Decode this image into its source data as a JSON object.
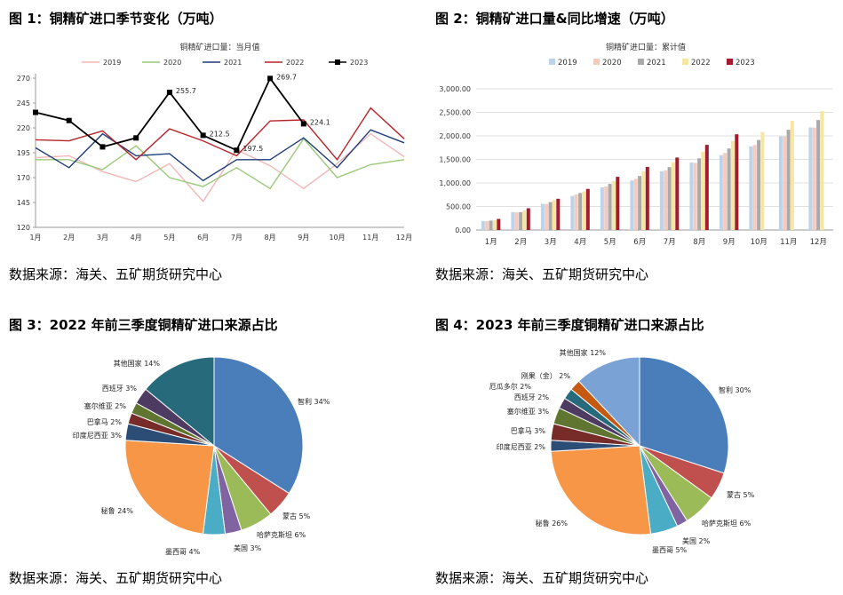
{
  "figures": [
    {
      "title": "图 1：铜精矿进口季节变化（万吨）",
      "source": "数据来源：海关、五矿期货研究中心"
    },
    {
      "title": "图 2：铜精矿进口量&同比增速（万吨）",
      "source": "数据来源：海关、五矿期货研究中心"
    },
    {
      "title": "图 3：2022 年前三季度铜精矿进口来源占比",
      "source": "数据来源：海关、五矿期货研究中心"
    },
    {
      "title": "图 4：2023 年前三季度铜精矿进口来源占比",
      "source": "数据来源：海关、五矿期货研究中心"
    }
  ],
  "chart_data": [
    {
      "type": "line",
      "title": "铜精矿进口量：当月值",
      "categories": [
        "1月",
        "2月",
        "3月",
        "4月",
        "5月",
        "6月",
        "7月",
        "8月",
        "9月",
        "10月",
        "11月",
        "12月"
      ],
      "ylim": [
        120,
        270
      ],
      "yticks": [
        120,
        145,
        170,
        195,
        220,
        245,
        270
      ],
      "grid": false,
      "legend": "top",
      "series": [
        {
          "name": "2019",
          "color": "#f4b6b6",
          "values": [
            190,
            192,
            176,
            166,
            184,
            146,
            198,
            182,
            159,
            184,
            214,
            191
          ]
        },
        {
          "name": "2020",
          "color": "#9bc97a",
          "values": [
            188,
            188,
            178,
            202,
            170,
            161,
            180,
            159,
            209,
            170,
            183,
            188
          ]
        },
        {
          "name": "2021",
          "color": "#1f3d7a",
          "values": [
            200,
            180,
            214,
            192,
            194,
            167,
            188,
            188,
            210,
            180,
            218,
            205
          ]
        },
        {
          "name": "2022",
          "color": "#b8242a",
          "values": [
            208,
            207,
            217,
            188,
            219,
            207,
            192,
            227,
            228,
            188,
            240,
            209
          ]
        },
        {
          "name": "2023",
          "color": "#000000",
          "marker": "square",
          "values": [
            235.6,
            227.4,
            200.9,
            209.9,
            255.7,
            212.5,
            197.5,
            269.7,
            224.1,
            null,
            null,
            null
          ],
          "labels": [
            null,
            null,
            null,
            null,
            "255.7",
            "212.5",
            "197.5",
            "269.7",
            "224.1",
            null,
            null,
            null
          ]
        }
      ]
    },
    {
      "type": "bar",
      "title": "铜精矿进口量：累计值",
      "categories": [
        "1月",
        "2月",
        "3月",
        "4月",
        "5月",
        "6月",
        "7月",
        "8月",
        "9月",
        "10月",
        "11月",
        "12月"
      ],
      "ylim": [
        0,
        3000
      ],
      "yticks": [
        "0.00",
        "500.00",
        "1,000.00",
        "1,500.00",
        "2,000.00",
        "2,500.00",
        "3,000.00"
      ],
      "grid": true,
      "legend": "top",
      "series": [
        {
          "name": "2019",
          "color": "#bcd3ea",
          "values": [
            190,
            380,
            555,
            722,
            905,
            1052,
            1250,
            1432,
            1590,
            1775,
            1989,
            2180
          ]
        },
        {
          "name": "2020",
          "color": "#f3cbbf",
          "values": [
            188,
            376,
            554,
            756,
            926,
            1087,
            1267,
            1426,
            1635,
            1805,
            1988,
            2176
          ]
        },
        {
          "name": "2021",
          "color": "#a9a9a9",
          "values": [
            200,
            380,
            594,
            786,
            980,
            1147,
            1335,
            1523,
            1733,
            1913,
            2131,
            2336
          ]
        },
        {
          "name": "2022",
          "color": "#f7e6a2",
          "values": [
            208,
            415,
            632,
            820,
            1039,
            1246,
            1438,
            1665,
            1893,
            2081,
            2321,
            2530
          ]
        },
        {
          "name": "2023",
          "color": "#a11c2e",
          "values": [
            236,
            463,
            664,
            874,
            1130,
            1342,
            1540,
            1810,
            2034,
            null,
            null,
            null
          ]
        }
      ]
    },
    {
      "type": "pie",
      "slices": [
        {
          "label": "智利",
          "pct": "34%",
          "value": 34,
          "color": "#4a7ebb"
        },
        {
          "label": "蒙古",
          "pct": "5%",
          "value": 5,
          "color": "#c0504d"
        },
        {
          "label": "哈萨克斯坦",
          "pct": "6%",
          "value": 6,
          "color": "#9bbb59"
        },
        {
          "label": "美国",
          "pct": "3%",
          "value": 3,
          "color": "#8064a2"
        },
        {
          "label": "墨西哥",
          "pct": "4%",
          "value": 4,
          "color": "#4bacc6"
        },
        {
          "label": "秘鲁",
          "pct": "24%",
          "value": 24,
          "color": "#f79646"
        },
        {
          "label": "印度尼西亚",
          "pct": "3%",
          "value": 3,
          "color": "#2c4d75"
        },
        {
          "label": "巴拿马",
          "pct": "2%",
          "value": 2,
          "color": "#772c2a"
        },
        {
          "label": "塞尔维亚",
          "pct": "2%",
          "value": 2,
          "color": "#5f7530"
        },
        {
          "label": "西班牙",
          "pct": "3%",
          "value": 3,
          "color": "#4d3b62"
        },
        {
          "label": "其他国家",
          "pct": "14%",
          "value": 14,
          "color": "#276a7c"
        }
      ]
    },
    {
      "type": "pie",
      "slices": [
        {
          "label": "智利",
          "pct": "30%",
          "value": 30,
          "color": "#4a7ebb"
        },
        {
          "label": "蒙古",
          "pct": "5%",
          "value": 5,
          "color": "#c0504d"
        },
        {
          "label": "哈萨克斯坦",
          "pct": "6%",
          "value": 6,
          "color": "#9bbb59"
        },
        {
          "label": "美国",
          "pct": "2%",
          "value": 2,
          "color": "#8064a2"
        },
        {
          "label": "墨西哥",
          "pct": "5%",
          "value": 5,
          "color": "#4bacc6"
        },
        {
          "label": "秘鲁",
          "pct": "26%",
          "value": 26,
          "color": "#f79646"
        },
        {
          "label": "印度尼西亚",
          "pct": "2%",
          "value": 2,
          "color": "#2c4d75"
        },
        {
          "label": "巴拿马",
          "pct": "3%",
          "value": 3,
          "color": "#772c2a"
        },
        {
          "label": "塞尔维亚",
          "pct": "3%",
          "value": 3,
          "color": "#5f7530"
        },
        {
          "label": "西班牙",
          "pct": "2%",
          "value": 2,
          "color": "#4d3b62"
        },
        {
          "label": "厄瓜多尔",
          "pct": "2%",
          "value": 2,
          "color": "#276a7c"
        },
        {
          "label": "刚果（金）",
          "pct": "2%",
          "value": 2,
          "color": "#c65911"
        },
        {
          "label": "其他国家",
          "pct": "12%",
          "value": 12,
          "color": "#7aa2d4"
        }
      ]
    }
  ]
}
